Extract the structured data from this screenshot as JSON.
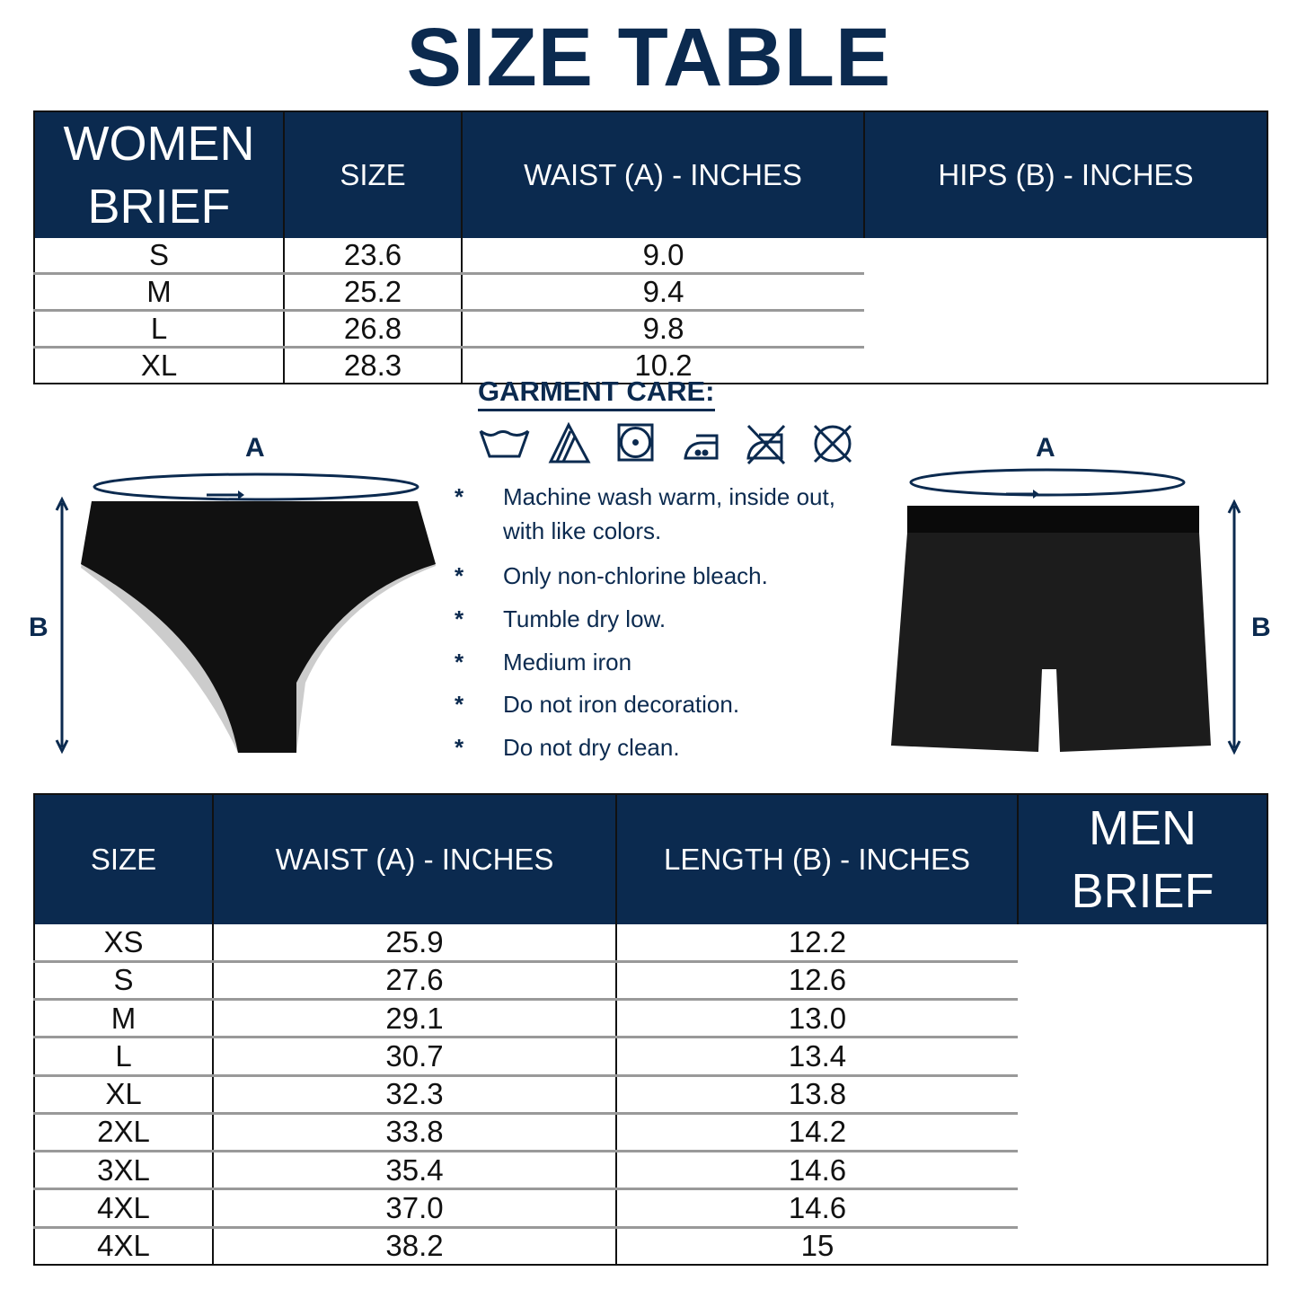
{
  "title": "SIZE TABLE",
  "women": {
    "label_line1": "WOMEN",
    "label_line2": "BRIEF",
    "headers": [
      "SIZE",
      "WAIST (A) - INCHES",
      "HIPS (B) - INCHES"
    ],
    "rows": [
      [
        "S",
        "23.6",
        "9.0"
      ],
      [
        "M",
        "25.2",
        "9.4"
      ],
      [
        "L",
        "26.8",
        "9.8"
      ],
      [
        "XL",
        "28.3",
        "10.2"
      ]
    ]
  },
  "care": {
    "title": "GARMENT CARE:",
    "icons": [
      "wash-warm-icon",
      "non-chlorine-bleach-icon",
      "tumble-dry-low-icon",
      "medium-iron-icon",
      "do-not-iron-icon",
      "do-not-dry-clean-icon"
    ],
    "bullet": "*",
    "items": [
      "Machine wash warm, inside out, with like colors.",
      "Only non-chlorine bleach.",
      "Tumble dry low.",
      "Medium iron",
      "Do not iron decoration.",
      "Do not dry clean."
    ]
  },
  "diagram": {
    "waist_letter": "A",
    "length_letter": "B"
  },
  "men": {
    "label_line1": "MEN",
    "label_line2": "BRIEF",
    "headers": [
      "SIZE",
      "WAIST (A) - INCHES",
      "LENGTH (B) - INCHES"
    ],
    "rows": [
      [
        "XS",
        "25.9",
        "12.2"
      ],
      [
        "S",
        "27.6",
        "12.6"
      ],
      [
        "M",
        "29.1",
        "13.0"
      ],
      [
        "L",
        "30.7",
        "13.4"
      ],
      [
        "XL",
        "32.3",
        "13.8"
      ],
      [
        "2XL",
        "33.8",
        "14.2"
      ],
      [
        "3XL",
        "35.4",
        "14.6"
      ],
      [
        "4XL",
        "37.0",
        "14.6"
      ],
      [
        "4XL",
        "38.2",
        "15"
      ]
    ]
  },
  "colors": {
    "navy": "#0b2a4f"
  }
}
